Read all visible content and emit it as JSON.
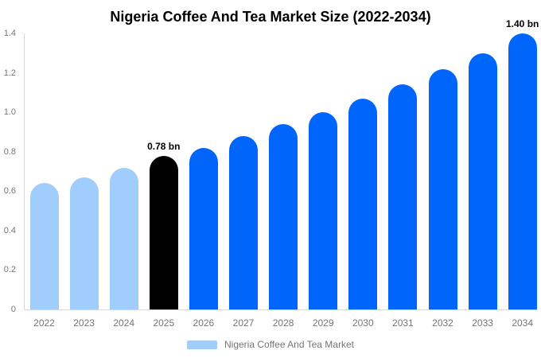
{
  "title": "Nigeria Coffee And Tea Market Size (2022-2034)",
  "legend": {
    "label": "Nigeria Coffee And Tea Market",
    "swatch_color": "#a0cdfb"
  },
  "colors": {
    "history": "#a0cdfb",
    "highlight": "#000000",
    "forecast": "#0066fb",
    "axis_line": "#d8d8d8",
    "axis_text": "#757575",
    "title_text": "#000000",
    "annotation_text": "#000000"
  },
  "chart_data": {
    "type": "bar",
    "title": "Nigeria Coffee And Tea Market Size (2022-2034)",
    "xlabel": "",
    "ylabel": "",
    "categories": [
      "2022",
      "2023",
      "2024",
      "2025",
      "2026",
      "2027",
      "2028",
      "2029",
      "2030",
      "2031",
      "2032",
      "2033",
      "2034"
    ],
    "values": [
      0.64,
      0.67,
      0.72,
      0.78,
      0.82,
      0.88,
      0.94,
      1.0,
      1.07,
      1.14,
      1.22,
      1.3,
      1.4
    ],
    "unit": "bn",
    "series_color_keys": [
      "history",
      "history",
      "history",
      "highlight",
      "forecast",
      "forecast",
      "forecast",
      "forecast",
      "forecast",
      "forecast",
      "forecast",
      "forecast",
      "forecast"
    ],
    "ylim": [
      0,
      1.4
    ],
    "ytick_labels": [
      "1.4",
      "1.2",
      "1.0",
      "0.8",
      "0.6",
      "0.4",
      "0.2",
      "0"
    ],
    "ytick_values": [
      1.4,
      1.2,
      1.0,
      0.8,
      0.6,
      0.4,
      0.2,
      0
    ],
    "grid": false,
    "legend_position": "bottom",
    "legend_entries": [
      "Nigeria Coffee And Tea Market"
    ],
    "annotations": [
      {
        "category": "2025",
        "text": "0.78 bn"
      },
      {
        "category": "2034",
        "text": "1.40 bn"
      }
    ]
  }
}
